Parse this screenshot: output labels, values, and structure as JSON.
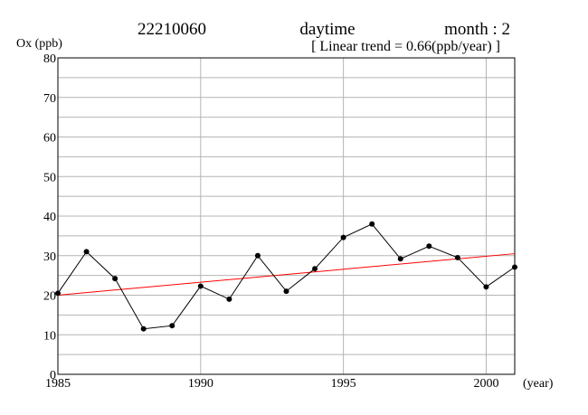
{
  "header": {
    "station": "22210060",
    "period": "daytime",
    "month_label": "month : 2",
    "trend_label": "[ Linear trend = 0.66(ppb/year) ]"
  },
  "chart_data": {
    "type": "line",
    "title": "22210060",
    "subtitle": "[ Linear trend = 0.66(ppb/year) ]",
    "ylabel": "Ox (ppb)",
    "xlabel": "(year)",
    "xlim": [
      1985,
      2001
    ],
    "ylim": [
      0,
      80
    ],
    "x_ticks": [
      1985,
      1990,
      1995,
      2000
    ],
    "y_ticks": [
      0,
      10,
      20,
      30,
      40,
      50,
      60,
      70,
      80
    ],
    "grid": true,
    "x": [
      1985,
      1986,
      1987,
      1988,
      1989,
      1990,
      1991,
      1992,
      1993,
      1994,
      1995,
      1996,
      1997,
      1998,
      1999,
      2000,
      2001
    ],
    "series": [
      {
        "values": [
          20.5,
          31.0,
          24.2,
          11.5,
          12.3,
          22.3,
          19.0,
          30.0,
          21.0,
          26.7,
          34.6,
          38.0,
          29.2,
          32.4,
          29.5,
          22.1,
          27.1
        ],
        "color": "#000000"
      }
    ],
    "trend": {
      "start": [
        1985,
        20.0
      ],
      "end": [
        2001,
        30.5
      ],
      "slope": 0.66,
      "color": "#ff0000"
    }
  }
}
